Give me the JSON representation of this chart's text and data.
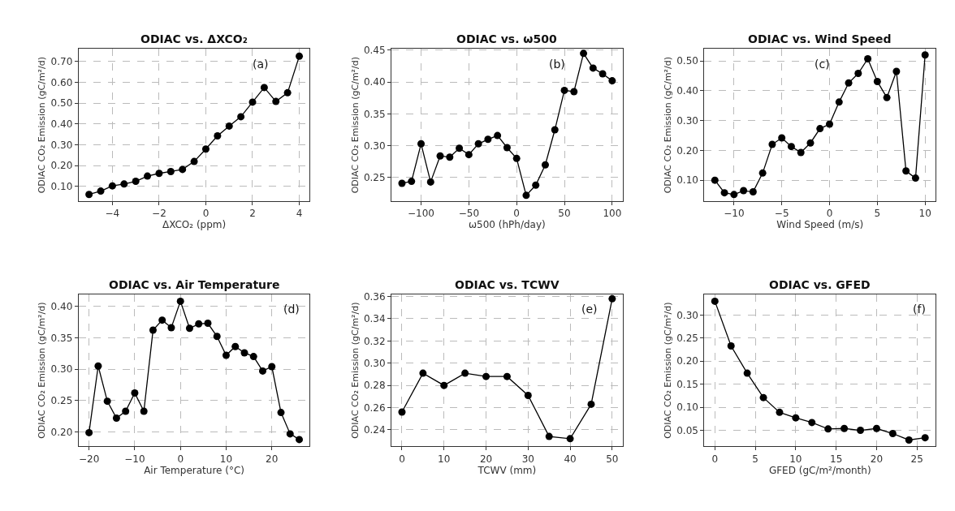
{
  "chart_data": [
    {
      "type": "line",
      "title": "ODIAC vs. ΔXCO₂",
      "xlabel": "ΔXCO₂ (ppm)",
      "ylabel": "ODIAC CO₂ Emission (gC/m²/d)",
      "annotations": [
        "(a)"
      ],
      "marker": "circle",
      "line_style": "solid",
      "grid": true,
      "x": [
        -5,
        -4.5,
        -4,
        -3.5,
        -3,
        -2.5,
        -2,
        -1.5,
        -1,
        -0.5,
        0,
        0.5,
        1,
        1.5,
        2,
        2.5,
        3,
        3.5,
        4
      ],
      "series": [
        {
          "color": "#000000",
          "values": [
            0.062,
            0.078,
            0.103,
            0.112,
            0.125,
            0.15,
            0.163,
            0.172,
            0.182,
            0.22,
            0.28,
            0.343,
            0.39,
            0.435,
            0.505,
            0.575,
            0.508,
            0.55,
            0.725
          ]
        }
      ],
      "xlim": [
        -5.45,
        4.45
      ],
      "ylim": [
        0.03,
        0.76
      ],
      "xticks": [
        -4,
        -2,
        0,
        2,
        4
      ],
      "yticks": [
        {
          "value": 0.1,
          "label": "0.10"
        },
        {
          "value": 0.2,
          "label": "0.20"
        },
        {
          "value": 0.3,
          "label": "0.30"
        },
        {
          "value": 0.4,
          "label": "0.40"
        },
        {
          "value": 0.5,
          "label": "0.50"
        },
        {
          "value": 0.6,
          "label": "0.60"
        },
        {
          "value": 0.7,
          "label": "0.70"
        }
      ]
    },
    {
      "type": "line",
      "title": "ODIAC vs. ω500",
      "xlabel": "ω500 (hPh/day)",
      "ylabel": "ODIAC CO₂ Emission (gC/m²/d)",
      "annotations": [
        "(b)"
      ],
      "marker": "circle",
      "line_style": "solid",
      "grid": true,
      "x": [
        -120,
        -110,
        -100,
        -90,
        -80,
        -70,
        -60,
        -50,
        -40,
        -30,
        -20,
        -10,
        0,
        10,
        20,
        30,
        40,
        50,
        60,
        70,
        80,
        90,
        100
      ],
      "series": [
        {
          "color": "#000000",
          "values": [
            0.241,
            0.244,
            0.303,
            0.243,
            0.284,
            0.282,
            0.296,
            0.286,
            0.303,
            0.31,
            0.316,
            0.297,
            0.28,
            0.222,
            0.238,
            0.27,
            0.325,
            0.387,
            0.385,
            0.445,
            0.422,
            0.413,
            0.402
          ]
        }
      ],
      "xlim": [
        -131,
        111
      ],
      "ylim": [
        0.213,
        0.452
      ],
      "xticks": [
        -100,
        -50,
        0,
        50,
        100
      ],
      "yticks": [
        {
          "value": 0.25,
          "label": "0.25"
        },
        {
          "value": 0.3,
          "label": "0.30"
        },
        {
          "value": 0.35,
          "label": "0.35"
        },
        {
          "value": 0.4,
          "label": "0.40"
        },
        {
          "value": 0.45,
          "label": "0.45"
        }
      ]
    },
    {
      "type": "line",
      "title": "ODIAC vs. Wind Speed",
      "xlabel": "Wind Speed (m/s)",
      "ylabel": "ODIAC CO₂ Emission (gC/m²/d)",
      "annotations": [
        "(c)"
      ],
      "marker": "circle",
      "line_style": "solid",
      "grid": true,
      "x": [
        -12,
        -11,
        -10,
        -9,
        -8,
        -7,
        -6,
        -5,
        -4,
        -3,
        -2,
        -1,
        0,
        1,
        2,
        3,
        4,
        5,
        6,
        7,
        8,
        9,
        10
      ],
      "series": [
        {
          "color": "#000000",
          "values": [
            0.1,
            0.058,
            0.052,
            0.065,
            0.061,
            0.124,
            0.22,
            0.242,
            0.213,
            0.193,
            0.225,
            0.273,
            0.288,
            0.362,
            0.426,
            0.458,
            0.507,
            0.431,
            0.377,
            0.465,
            0.131,
            0.107,
            0.52
          ]
        }
      ],
      "xlim": [
        -13.1,
        11.1
      ],
      "ylim": [
        0.03,
        0.54
      ],
      "xticks": [
        -10,
        -5,
        0,
        5,
        10
      ],
      "yticks": [
        {
          "value": 0.1,
          "label": "0.10"
        },
        {
          "value": 0.2,
          "label": "0.20"
        },
        {
          "value": 0.3,
          "label": "0.30"
        },
        {
          "value": 0.4,
          "label": "0.40"
        },
        {
          "value": 0.5,
          "label": "0.50"
        }
      ]
    },
    {
      "type": "line",
      "title": "ODIAC vs. Air Temperature",
      "xlabel": "Air Temperature (°C)",
      "ylabel": "ODIAC CO₂ Emission (gC/m²/d)",
      "annotations": [
        "(d)"
      ],
      "marker": "circle",
      "line_style": "solid",
      "grid": true,
      "x": [
        -20,
        -18,
        -16,
        -14,
        -12,
        -10,
        -8,
        -6,
        -4,
        -2,
        0,
        2,
        4,
        6,
        8,
        10,
        12,
        14,
        16,
        18,
        20,
        22,
        24,
        26
      ],
      "series": [
        {
          "color": "#000000",
          "values": [
            0.199,
            0.305,
            0.249,
            0.222,
            0.233,
            0.262,
            0.233,
            0.362,
            0.378,
            0.366,
            0.408,
            0.365,
            0.372,
            0.373,
            0.352,
            0.322,
            0.336,
            0.326,
            0.32,
            0.297,
            0.304,
            0.231,
            0.197,
            0.188
          ]
        }
      ],
      "xlim": [
        -22.3,
        28.3
      ],
      "ylim": [
        0.177,
        0.419
      ],
      "xticks": [
        -20,
        -10,
        0,
        10,
        20
      ],
      "yticks": [
        {
          "value": 0.2,
          "label": "0.20"
        },
        {
          "value": 0.25,
          "label": "0.25"
        },
        {
          "value": 0.3,
          "label": "0.30"
        },
        {
          "value": 0.35,
          "label": "0.35"
        },
        {
          "value": 0.4,
          "label": "0.40"
        }
      ]
    },
    {
      "type": "line",
      "title": "ODIAC vs. TCWV",
      "xlabel": "TCWV (mm)",
      "ylabel": "ODIAC CO₂ Emission (gC/m²/d)",
      "annotations": [
        "(e)"
      ],
      "marker": "circle",
      "line_style": "solid",
      "grid": true,
      "x": [
        0,
        5,
        10,
        15,
        20,
        25,
        30,
        35,
        40,
        45,
        50
      ],
      "series": [
        {
          "color": "#000000",
          "values": [
            0.256,
            0.291,
            0.28,
            0.291,
            0.288,
            0.288,
            0.271,
            0.234,
            0.232,
            0.263,
            0.358
          ]
        }
      ],
      "xlim": [
        -2.5,
        52.5
      ],
      "ylim": [
        0.225,
        0.362
      ],
      "xticks": [
        0,
        10,
        20,
        30,
        40,
        50
      ],
      "yticks": [
        {
          "value": 0.24,
          "label": "0.24"
        },
        {
          "value": 0.26,
          "label": "0.26"
        },
        {
          "value": 0.28,
          "label": "0.28"
        },
        {
          "value": 0.3,
          "label": "0.30"
        },
        {
          "value": 0.32,
          "label": "0.32"
        },
        {
          "value": 0.34,
          "label": "0.34"
        },
        {
          "value": 0.36,
          "label": "0.36"
        }
      ]
    },
    {
      "type": "line",
      "title": "ODIAC vs. GFED",
      "xlabel": "GFED (gC/m²/month)",
      "ylabel": "ODIAC CO₂ Emission (gC/m²/d)",
      "annotations": [
        "(f)"
      ],
      "marker": "circle",
      "line_style": "solid",
      "grid": true,
      "x": [
        0,
        2,
        4,
        6,
        8,
        10,
        12,
        14,
        16,
        18,
        20,
        22,
        24,
        26
      ],
      "series": [
        {
          "color": "#000000",
          "values": [
            0.33,
            0.233,
            0.174,
            0.121,
            0.089,
            0.077,
            0.067,
            0.053,
            0.054,
            0.05,
            0.054,
            0.043,
            0.029,
            0.034
          ]
        }
      ],
      "xlim": [
        -1.3,
        27.3
      ],
      "ylim": [
        0.015,
        0.345
      ],
      "xticks": [
        0,
        5,
        10,
        15,
        20,
        25
      ],
      "yticks": [
        {
          "value": 0.05,
          "label": "0.05"
        },
        {
          "value": 0.1,
          "label": "0.10"
        },
        {
          "value": 0.15,
          "label": "0.15"
        },
        {
          "value": 0.2,
          "label": "0.20"
        },
        {
          "value": 0.25,
          "label": "0.25"
        },
        {
          "value": 0.3,
          "label": "0.30"
        }
      ]
    }
  ]
}
